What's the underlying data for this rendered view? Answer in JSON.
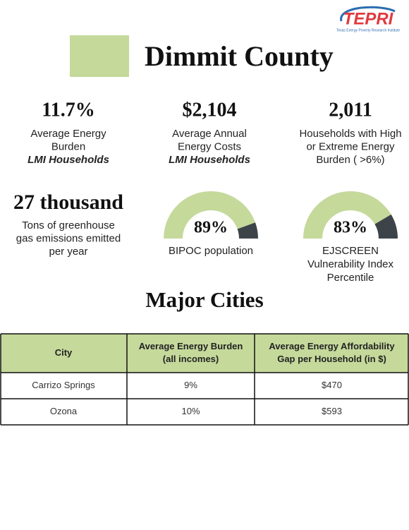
{
  "logo": {
    "name": "TEPRI",
    "tagline": "Texas Energy Poverty Research Institute"
  },
  "title": "Dimmit County",
  "stats": [
    {
      "value": "11.7%",
      "label_lines": [
        "Average Energy",
        "Burden"
      ],
      "emphasis": "LMI Households"
    },
    {
      "value": "$2,104",
      "label_lines": [
        "Average Annual",
        "Energy Costs"
      ],
      "emphasis": "LMI Households"
    },
    {
      "value": "2,011",
      "label_lines": [
        "Households with High",
        "or Extreme Energy",
        "Burden ( >6%)"
      ]
    }
  ],
  "greenhouse": {
    "value": "27 thousand",
    "label_lines": [
      "Tons of greenhouse",
      "gas emissions emitted",
      "per year"
    ]
  },
  "gauges": [
    {
      "value": 89,
      "value_label": "89%",
      "caption_lines": [
        "BIPOC population"
      ]
    },
    {
      "value": 83,
      "value_label": "83%",
      "caption_lines": [
        "EJSCREEN",
        "Vulnerability Index",
        "Percentile"
      ]
    }
  ],
  "section_title": "Major Cities",
  "table": {
    "columns": [
      [
        "City"
      ],
      [
        "Average Energy Burden",
        "(all incomes)"
      ],
      [
        "Average Energy Affordability",
        "Gap per Household (in $)"
      ]
    ],
    "rows": [
      [
        "Carrizo Springs",
        "9%",
        "$470"
      ],
      [
        "Ozona",
        "10%",
        "$593"
      ]
    ]
  }
}
